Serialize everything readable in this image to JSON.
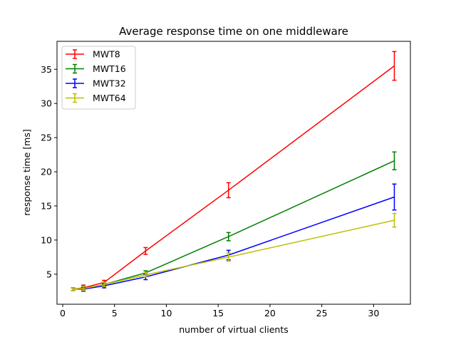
{
  "chart_data": {
    "type": "line",
    "title": "Average response time on one middleware",
    "xlabel": "number of virtual clients",
    "ylabel": "response time [ms]",
    "xlim": [
      -0.55,
      33.55
    ],
    "ylim": [
      0.6,
      39.1
    ],
    "xticks": [
      0,
      5,
      10,
      15,
      20,
      25,
      30
    ],
    "yticks": [
      5,
      10,
      15,
      20,
      25,
      30,
      35
    ],
    "x": [
      1,
      2,
      4,
      8,
      16,
      32
    ],
    "legend_position": "top-left",
    "grid": false,
    "series": [
      {
        "name": "MWT8",
        "color": "#ff0000",
        "values": [
          2.8,
          3.0,
          3.8,
          8.4,
          17.3,
          35.5
        ],
        "errors": [
          0.2,
          0.4,
          0.3,
          0.5,
          1.1,
          2.1
        ]
      },
      {
        "name": "MWT16",
        "color": "#008000",
        "values": [
          2.8,
          2.9,
          3.5,
          5.2,
          10.5,
          21.6
        ],
        "errors": [
          0.2,
          0.3,
          0.3,
          0.3,
          0.6,
          1.3
        ]
      },
      {
        "name": "MWT32",
        "color": "#0000ff",
        "values": [
          2.8,
          2.8,
          3.3,
          4.6,
          7.8,
          16.3
        ],
        "errors": [
          0.2,
          0.3,
          0.3,
          0.4,
          0.7,
          1.9
        ]
      },
      {
        "name": "MWT64",
        "color": "#bfbf00",
        "values": [
          2.8,
          2.9,
          3.5,
          4.9,
          7.5,
          12.9
        ],
        "errors": [
          0.2,
          0.3,
          0.3,
          0.3,
          0.6,
          1.0
        ]
      }
    ]
  }
}
